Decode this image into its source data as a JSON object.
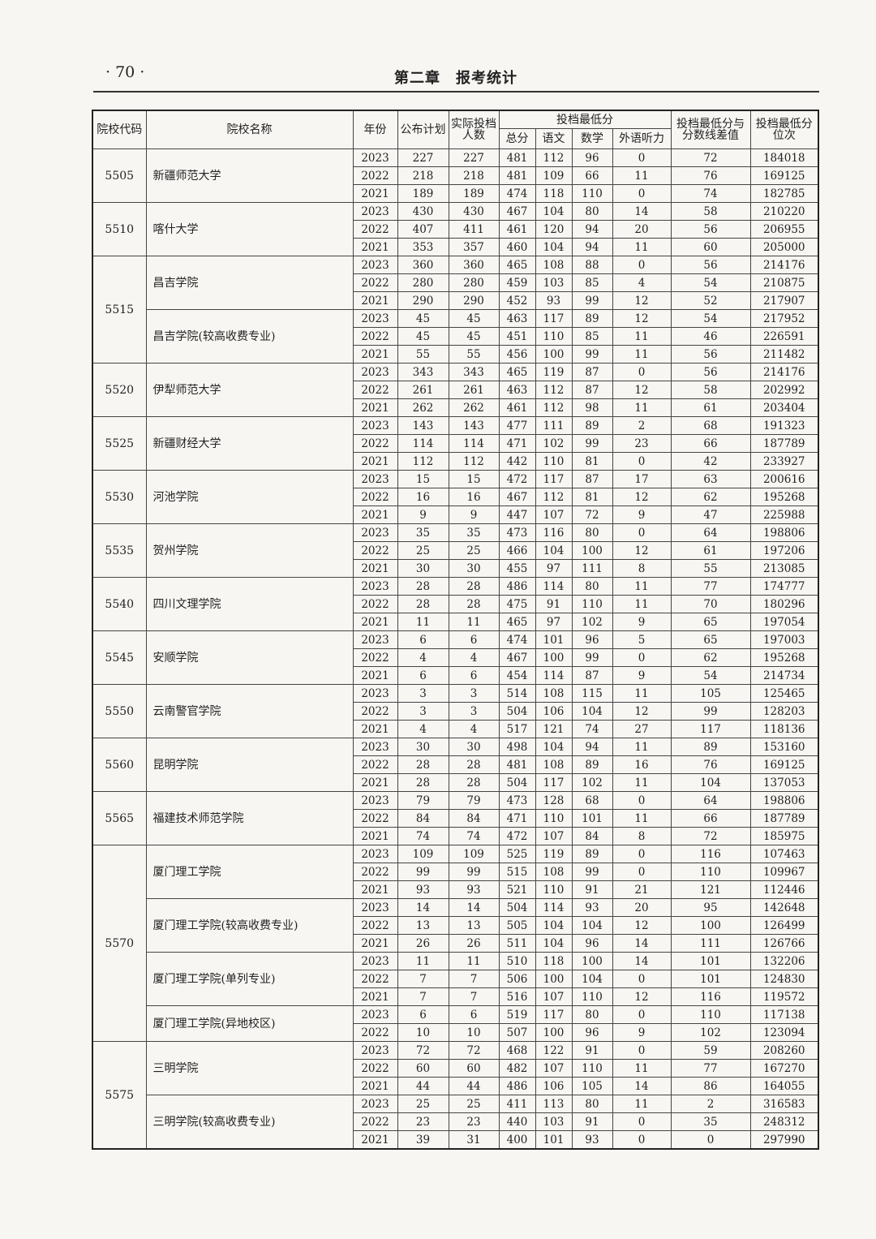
{
  "header": {
    "page_number": "· 70 ·",
    "chapter_title": "第二章　报考统计"
  },
  "table": {
    "headers": {
      "code": "院校代码",
      "name": "院校名称",
      "year": "年份",
      "plan": "公布计划",
      "actual": "实际投档人数",
      "min_score": "投档最低分",
      "total": "总分",
      "chinese": "语文",
      "math": "数学",
      "listening": "外语听力",
      "diff": "投档最低分与分数线差值",
      "rank": "投档最低分位次"
    },
    "schools": [
      {
        "code": "5505",
        "programs": [
          {
            "name": "新疆师范大学",
            "rows": [
              [
                "2023",
                "227",
                "227",
                "481",
                "112",
                "96",
                "0",
                "72",
                "184018"
              ],
              [
                "2022",
                "218",
                "218",
                "481",
                "109",
                "66",
                "11",
                "76",
                "169125"
              ],
              [
                "2021",
                "189",
                "189",
                "474",
                "118",
                "110",
                "0",
                "74",
                "182785"
              ]
            ]
          }
        ]
      },
      {
        "code": "5510",
        "programs": [
          {
            "name": "喀什大学",
            "rows": [
              [
                "2023",
                "430",
                "430",
                "467",
                "104",
                "80",
                "14",
                "58",
                "210220"
              ],
              [
                "2022",
                "407",
                "411",
                "461",
                "120",
                "94",
                "20",
                "56",
                "206955"
              ],
              [
                "2021",
                "353",
                "357",
                "460",
                "104",
                "94",
                "11",
                "60",
                "205000"
              ]
            ]
          }
        ]
      },
      {
        "code": "5515",
        "programs": [
          {
            "name": "昌吉学院",
            "rows": [
              [
                "2023",
                "360",
                "360",
                "465",
                "108",
                "88",
                "0",
                "56",
                "214176"
              ],
              [
                "2022",
                "280",
                "280",
                "459",
                "103",
                "85",
                "4",
                "54",
                "210875"
              ],
              [
                "2021",
                "290",
                "290",
                "452",
                "93",
                "99",
                "12",
                "52",
                "217907"
              ]
            ]
          },
          {
            "name": "昌吉学院(较高收费专业)",
            "rows": [
              [
                "2023",
                "45",
                "45",
                "463",
                "117",
                "89",
                "12",
                "54",
                "217952"
              ],
              [
                "2022",
                "45",
                "45",
                "451",
                "110",
                "85",
                "11",
                "46",
                "226591"
              ],
              [
                "2021",
                "55",
                "55",
                "456",
                "100",
                "99",
                "11",
                "56",
                "211482"
              ]
            ]
          }
        ]
      },
      {
        "code": "5520",
        "programs": [
          {
            "name": "伊犁师范大学",
            "rows": [
              [
                "2023",
                "343",
                "343",
                "465",
                "119",
                "87",
                "0",
                "56",
                "214176"
              ],
              [
                "2022",
                "261",
                "261",
                "463",
                "112",
                "87",
                "12",
                "58",
                "202992"
              ],
              [
                "2021",
                "262",
                "262",
                "461",
                "112",
                "98",
                "11",
                "61",
                "203404"
              ]
            ]
          }
        ]
      },
      {
        "code": "5525",
        "programs": [
          {
            "name": "新疆财经大学",
            "rows": [
              [
                "2023",
                "143",
                "143",
                "477",
                "111",
                "89",
                "2",
                "68",
                "191323"
              ],
              [
                "2022",
                "114",
                "114",
                "471",
                "102",
                "99",
                "23",
                "66",
                "187789"
              ],
              [
                "2021",
                "112",
                "112",
                "442",
                "110",
                "81",
                "0",
                "42",
                "233927"
              ]
            ]
          }
        ]
      },
      {
        "code": "5530",
        "programs": [
          {
            "name": "河池学院",
            "rows": [
              [
                "2023",
                "15",
                "15",
                "472",
                "117",
                "87",
                "17",
                "63",
                "200616"
              ],
              [
                "2022",
                "16",
                "16",
                "467",
                "112",
                "81",
                "12",
                "62",
                "195268"
              ],
              [
                "2021",
                "9",
                "9",
                "447",
                "107",
                "72",
                "9",
                "47",
                "225988"
              ]
            ]
          }
        ]
      },
      {
        "code": "5535",
        "programs": [
          {
            "name": "贺州学院",
            "rows": [
              [
                "2023",
                "35",
                "35",
                "473",
                "116",
                "80",
                "0",
                "64",
                "198806"
              ],
              [
                "2022",
                "25",
                "25",
                "466",
                "104",
                "100",
                "12",
                "61",
                "197206"
              ],
              [
                "2021",
                "30",
                "30",
                "455",
                "97",
                "111",
                "8",
                "55",
                "213085"
              ]
            ]
          }
        ]
      },
      {
        "code": "5540",
        "programs": [
          {
            "name": "四川文理学院",
            "rows": [
              [
                "2023",
                "28",
                "28",
                "486",
                "114",
                "80",
                "11",
                "77",
                "174777"
              ],
              [
                "2022",
                "28",
                "28",
                "475",
                "91",
                "110",
                "11",
                "70",
                "180296"
              ],
              [
                "2021",
                "11",
                "11",
                "465",
                "97",
                "102",
                "9",
                "65",
                "197054"
              ]
            ]
          }
        ]
      },
      {
        "code": "5545",
        "programs": [
          {
            "name": "安顺学院",
            "rows": [
              [
                "2023",
                "6",
                "6",
                "474",
                "101",
                "96",
                "5",
                "65",
                "197003"
              ],
              [
                "2022",
                "4",
                "4",
                "467",
                "100",
                "99",
                "0",
                "62",
                "195268"
              ],
              [
                "2021",
                "6",
                "6",
                "454",
                "114",
                "87",
                "9",
                "54",
                "214734"
              ]
            ]
          }
        ]
      },
      {
        "code": "5550",
        "programs": [
          {
            "name": "云南警官学院",
            "rows": [
              [
                "2023",
                "3",
                "3",
                "514",
                "108",
                "115",
                "11",
                "105",
                "125465"
              ],
              [
                "2022",
                "3",
                "3",
                "504",
                "106",
                "104",
                "12",
                "99",
                "128203"
              ],
              [
                "2021",
                "4",
                "4",
                "517",
                "121",
                "74",
                "27",
                "117",
                "118136"
              ]
            ]
          }
        ]
      },
      {
        "code": "5560",
        "programs": [
          {
            "name": "昆明学院",
            "rows": [
              [
                "2023",
                "30",
                "30",
                "498",
                "104",
                "94",
                "11",
                "89",
                "153160"
              ],
              [
                "2022",
                "28",
                "28",
                "481",
                "108",
                "89",
                "16",
                "76",
                "169125"
              ],
              [
                "2021",
                "28",
                "28",
                "504",
                "117",
                "102",
                "11",
                "104",
                "137053"
              ]
            ]
          }
        ]
      },
      {
        "code": "5565",
        "programs": [
          {
            "name": "福建技术师范学院",
            "rows": [
              [
                "2023",
                "79",
                "79",
                "473",
                "128",
                "68",
                "0",
                "64",
                "198806"
              ],
              [
                "2022",
                "84",
                "84",
                "471",
                "110",
                "101",
                "11",
                "66",
                "187789"
              ],
              [
                "2021",
                "74",
                "74",
                "472",
                "107",
                "84",
                "8",
                "72",
                "185975"
              ]
            ]
          }
        ]
      },
      {
        "code": "5570",
        "programs": [
          {
            "name": "厦门理工学院",
            "rows": [
              [
                "2023",
                "109",
                "109",
                "525",
                "119",
                "89",
                "0",
                "116",
                "107463"
              ],
              [
                "2022",
                "99",
                "99",
                "515",
                "108",
                "99",
                "0",
                "110",
                "109967"
              ],
              [
                "2021",
                "93",
                "93",
                "521",
                "110",
                "91",
                "21",
                "121",
                "112446"
              ]
            ]
          },
          {
            "name": "厦门理工学院(较高收费专业)",
            "rows": [
              [
                "2023",
                "14",
                "14",
                "504",
                "114",
                "93",
                "20",
                "95",
                "142648"
              ],
              [
                "2022",
                "13",
                "13",
                "505",
                "104",
                "104",
                "12",
                "100",
                "126499"
              ],
              [
                "2021",
                "26",
                "26",
                "511",
                "104",
                "96",
                "14",
                "111",
                "126766"
              ]
            ]
          },
          {
            "name": "厦门理工学院(单列专业)",
            "rows": [
              [
                "2023",
                "11",
                "11",
                "510",
                "118",
                "100",
                "14",
                "101",
                "132206"
              ],
              [
                "2022",
                "7",
                "7",
                "506",
                "100",
                "104",
                "0",
                "101",
                "124830"
              ],
              [
                "2021",
                "7",
                "7",
                "516",
                "107",
                "110",
                "12",
                "116",
                "119572"
              ]
            ]
          },
          {
            "name": "厦门理工学院(异地校区)",
            "rows": [
              [
                "2023",
                "6",
                "6",
                "519",
                "117",
                "80",
                "0",
                "110",
                "117138"
              ],
              [
                "2022",
                "10",
                "10",
                "507",
                "100",
                "96",
                "9",
                "102",
                "123094"
              ]
            ]
          }
        ]
      },
      {
        "code": "5575",
        "programs": [
          {
            "name": "三明学院",
            "rows": [
              [
                "2023",
                "72",
                "72",
                "468",
                "122",
                "91",
                "0",
                "59",
                "208260"
              ],
              [
                "2022",
                "60",
                "60",
                "482",
                "107",
                "110",
                "11",
                "77",
                "167270"
              ],
              [
                "2021",
                "44",
                "44",
                "486",
                "106",
                "105",
                "14",
                "86",
                "164055"
              ]
            ]
          },
          {
            "name": "三明学院(较高收费专业)",
            "rows": [
              [
                "2023",
                "25",
                "25",
                "411",
                "113",
                "80",
                "11",
                "2",
                "316583"
              ],
              [
                "2022",
                "23",
                "23",
                "440",
                "103",
                "91",
                "0",
                "35",
                "248312"
              ],
              [
                "2021",
                "39",
                "31",
                "400",
                "101",
                "93",
                "0",
                "0",
                "297990"
              ]
            ]
          }
        ]
      }
    ]
  }
}
